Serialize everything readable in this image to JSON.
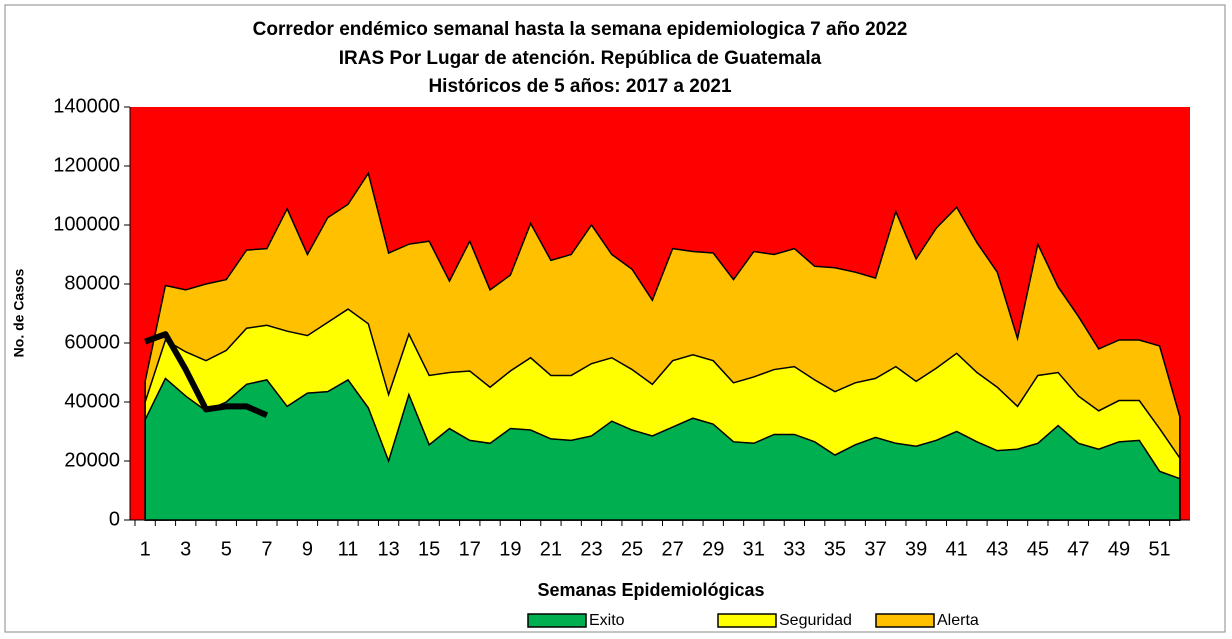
{
  "chart_data": {
    "type": "area",
    "title": [
      "Corredor endémico semanal  hasta la semana epidemiologica 7 año 2022",
      "IRAS Por Lugar de atención.  República de Guatemala",
      "Históricos de 5 años: 2017 a 2021"
    ],
    "xlabel": "Semanas Epidemiológicas",
    "ylabel": "No. de Casos",
    "categories": [
      1,
      null,
      3,
      null,
      5,
      null,
      7,
      null,
      9,
      null,
      11,
      null,
      13,
      null,
      15,
      null,
      17,
      null,
      19,
      null,
      21,
      null,
      23,
      null,
      25,
      null,
      27,
      null,
      29,
      null,
      31,
      null,
      33,
      null,
      35,
      null,
      37,
      null,
      39,
      null,
      41,
      null,
      43,
      null,
      45,
      null,
      47,
      null,
      49,
      null,
      51,
      null
    ],
    "plot_color": "#ff0000",
    "ylim": [
      0,
      140000
    ],
    "yticks": [
      0,
      20000,
      40000,
      60000,
      80000,
      100000,
      120000,
      140000
    ],
    "series": [
      {
        "name": "Alerta",
        "color": "#ffc000",
        "values": [
          47000,
          79500,
          78000,
          80000,
          81500,
          91500,
          92000,
          105500,
          90000,
          102500,
          107000,
          117500,
          90500,
          93500,
          94500,
          81000,
          94500,
          78000,
          83000,
          100500,
          88000,
          90000,
          100000,
          90000,
          85000,
          74500,
          92000,
          91000,
          90500,
          81500,
          91000,
          90000,
          92000,
          86000,
          85500,
          84000,
          82000,
          104500,
          88500,
          99000,
          106000,
          94000,
          84000,
          61500,
          93500,
          79000,
          69000,
          58000,
          61000,
          61000,
          59000,
          35000
        ]
      },
      {
        "name": "Seguridad",
        "color": "#ffff00",
        "values": [
          40000,
          61000,
          57000,
          54000,
          57500,
          65000,
          66000,
          64000,
          62500,
          67000,
          71500,
          66500,
          42500,
          63000,
          49000,
          50000,
          50500,
          45000,
          50500,
          55000,
          49000,
          49000,
          53000,
          55000,
          51000,
          46000,
          54000,
          56000,
          54000,
          46500,
          48500,
          51000,
          52000,
          47500,
          43500,
          46500,
          48000,
          52000,
          47000,
          51500,
          56500,
          50000,
          45000,
          38500,
          49000,
          50000,
          42000,
          37000,
          40500,
          40500,
          31000,
          21000
        ]
      },
      {
        "name": "Exito",
        "color": "#00b050",
        "values": [
          34000,
          48000,
          42000,
          37000,
          40000,
          46000,
          47500,
          38500,
          43000,
          43500,
          47500,
          38000,
          20000,
          42500,
          25500,
          31000,
          27000,
          26000,
          31000,
          30500,
          27500,
          27000,
          28500,
          33500,
          30500,
          28500,
          31500,
          34500,
          32500,
          26500,
          26000,
          29000,
          29000,
          26500,
          22000,
          25500,
          28000,
          26000,
          25000,
          27000,
          30000,
          26500,
          23500,
          24000,
          26000,
          32000,
          26000,
          24000,
          26500,
          27000,
          16500,
          14000
        ]
      }
    ],
    "current": {
      "color": "#000000",
      "values": [
        60500,
        63000,
        51000,
        37500,
        38500,
        38500,
        35500
      ]
    }
  }
}
